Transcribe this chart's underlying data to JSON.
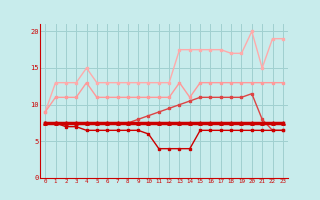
{
  "xlim": [
    -0.5,
    23.5
  ],
  "ylim": [
    0,
    21
  ],
  "yticks": [
    0,
    5,
    10,
    15,
    20
  ],
  "xticks": [
    0,
    1,
    2,
    3,
    4,
    5,
    6,
    7,
    8,
    9,
    10,
    11,
    12,
    13,
    14,
    15,
    16,
    17,
    18,
    19,
    20,
    21,
    22,
    23
  ],
  "bg_color": "#c8ecec",
  "grid_color": "#a0d0d0",
  "series": [
    {
      "x": [
        0,
        1,
        2,
        3,
        4,
        5,
        6,
        7,
        8,
        9,
        10,
        11,
        12,
        13,
        14,
        15,
        16,
        17,
        18,
        19,
        20,
        21,
        22,
        23
      ],
      "y": [
        9,
        13,
        13,
        13,
        15,
        13,
        13,
        13,
        13,
        13,
        13,
        13,
        13,
        17.5,
        17.5,
        17.5,
        17.5,
        17.5,
        17,
        17,
        20,
        15,
        19,
        19
      ],
      "color": "#ffaaaa",
      "lw": 1.0,
      "marker": "s",
      "ms": 2.0,
      "zorder": 2
    },
    {
      "x": [
        0,
        1,
        2,
        3,
        4,
        5,
        6,
        7,
        8,
        9,
        10,
        11,
        12,
        13,
        14,
        15,
        16,
        17,
        18,
        19,
        20,
        21,
        22,
        23
      ],
      "y": [
        9,
        11,
        11,
        11,
        13,
        11,
        11,
        11,
        11,
        11,
        11,
        11,
        11,
        13,
        11,
        13,
        13,
        13,
        13,
        13,
        13,
        13,
        13,
        13
      ],
      "color": "#ff9999",
      "lw": 1.0,
      "marker": "s",
      "ms": 2.0,
      "zorder": 2
    },
    {
      "x": [
        0,
        1,
        2,
        3,
        4,
        5,
        6,
        7,
        8,
        9,
        10,
        11,
        12,
        13,
        14,
        15,
        16,
        17,
        18,
        19,
        20,
        21,
        22,
        23
      ],
      "y": [
        7.5,
        7.5,
        7.5,
        7.5,
        7.5,
        7.5,
        7.5,
        7.5,
        7.5,
        8,
        8.5,
        9,
        9.5,
        10,
        10.5,
        11,
        11,
        11,
        11,
        11,
        11.5,
        8,
        6.5,
        6.5
      ],
      "color": "#dd4444",
      "lw": 1.0,
      "marker": "s",
      "ms": 2.0,
      "zorder": 3
    },
    {
      "x": [
        0,
        1,
        2,
        3,
        4,
        5,
        6,
        7,
        8,
        9,
        10,
        11,
        12,
        13,
        14,
        15,
        16,
        17,
        18,
        19,
        20,
        21,
        22,
        23
      ],
      "y": [
        7.5,
        7.5,
        7.5,
        7.5,
        7.5,
        7.5,
        7.5,
        7.5,
        7.5,
        7.5,
        7.5,
        7.5,
        7.5,
        7.5,
        7.5,
        7.5,
        7.5,
        7.5,
        7.5,
        7.5,
        7.5,
        7.5,
        7.5,
        7.5
      ],
      "color": "#cc0000",
      "lw": 2.5,
      "marker": "^",
      "ms": 2.5,
      "zorder": 4
    },
    {
      "x": [
        0,
        1,
        2,
        3,
        4,
        5,
        6,
        7,
        8,
        9,
        10,
        11,
        12,
        13,
        14,
        15,
        16,
        17,
        18,
        19,
        20,
        21,
        22,
        23
      ],
      "y": [
        7.5,
        7.5,
        7,
        7,
        6.5,
        6.5,
        6.5,
        6.5,
        6.5,
        6.5,
        6,
        4,
        4,
        4,
        4,
        6.5,
        6.5,
        6.5,
        6.5,
        6.5,
        6.5,
        6.5,
        6.5,
        6.5
      ],
      "color": "#cc0000",
      "lw": 1.0,
      "marker": "s",
      "ms": 2.0,
      "zorder": 3
    }
  ],
  "wind_arrows": [
    "s",
    "s",
    "s",
    "s",
    "s",
    "s",
    "s",
    "s",
    "s",
    "s",
    "s",
    "s",
    "s",
    "s",
    "s",
    "s",
    "s",
    "s",
    "s",
    "s",
    "s",
    "s",
    "s",
    "s"
  ]
}
